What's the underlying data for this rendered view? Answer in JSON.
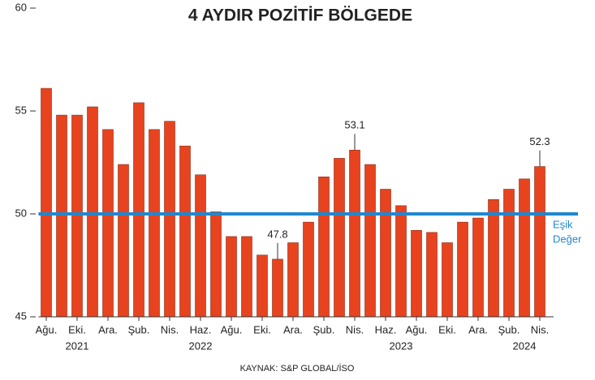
{
  "chart_data": {
    "type": "bar",
    "title": "4 AYDIR POZİTİF BÖLGEDE",
    "source": "KAYNAK: S&P GLOBAL/İSO",
    "categories": [
      "Ağu.",
      null,
      "Eki.",
      null,
      "Ara.",
      null,
      "Şub.",
      null,
      "Nis.",
      null,
      "Haz.",
      null,
      "Ağu.",
      null,
      "Eki.",
      null,
      "Ara.",
      null,
      "Şub.",
      null,
      "Nis.",
      null,
      "Haz.",
      null,
      "Ağu.",
      null,
      "Eki.",
      null,
      "Ara.",
      null,
      "Şub.",
      null,
      "Nis."
    ],
    "years": [
      null,
      null,
      "2021",
      null,
      null,
      null,
      null,
      null,
      null,
      null,
      "2022",
      null,
      null,
      null,
      null,
      null,
      null,
      null,
      null,
      null,
      null,
      null,
      null,
      "2023",
      null,
      null,
      null,
      null,
      null,
      null,
      null,
      "2024",
      null
    ],
    "values": [
      56.1,
      54.8,
      54.8,
      55.2,
      54.1,
      52.4,
      55.4,
      54.1,
      54.5,
      53.3,
      51.9,
      50.1,
      48.9,
      48.9,
      48.0,
      47.8,
      48.6,
      49.6,
      51.8,
      52.7,
      53.1,
      52.4,
      51.2,
      50.4,
      49.2,
      49.1,
      48.6,
      49.6,
      49.8,
      50.7,
      51.2,
      51.7,
      52.3
    ],
    "labeled": [
      15,
      20,
      32
    ],
    "color": "#e8431f",
    "threshold": {
      "value": 50,
      "label": [
        "Eşik",
        "Değer"
      ],
      "color": "#1e88d0"
    },
    "ylim": [
      45,
      60
    ],
    "yticks": [
      45,
      50,
      55,
      60
    ],
    "grid": false
  }
}
